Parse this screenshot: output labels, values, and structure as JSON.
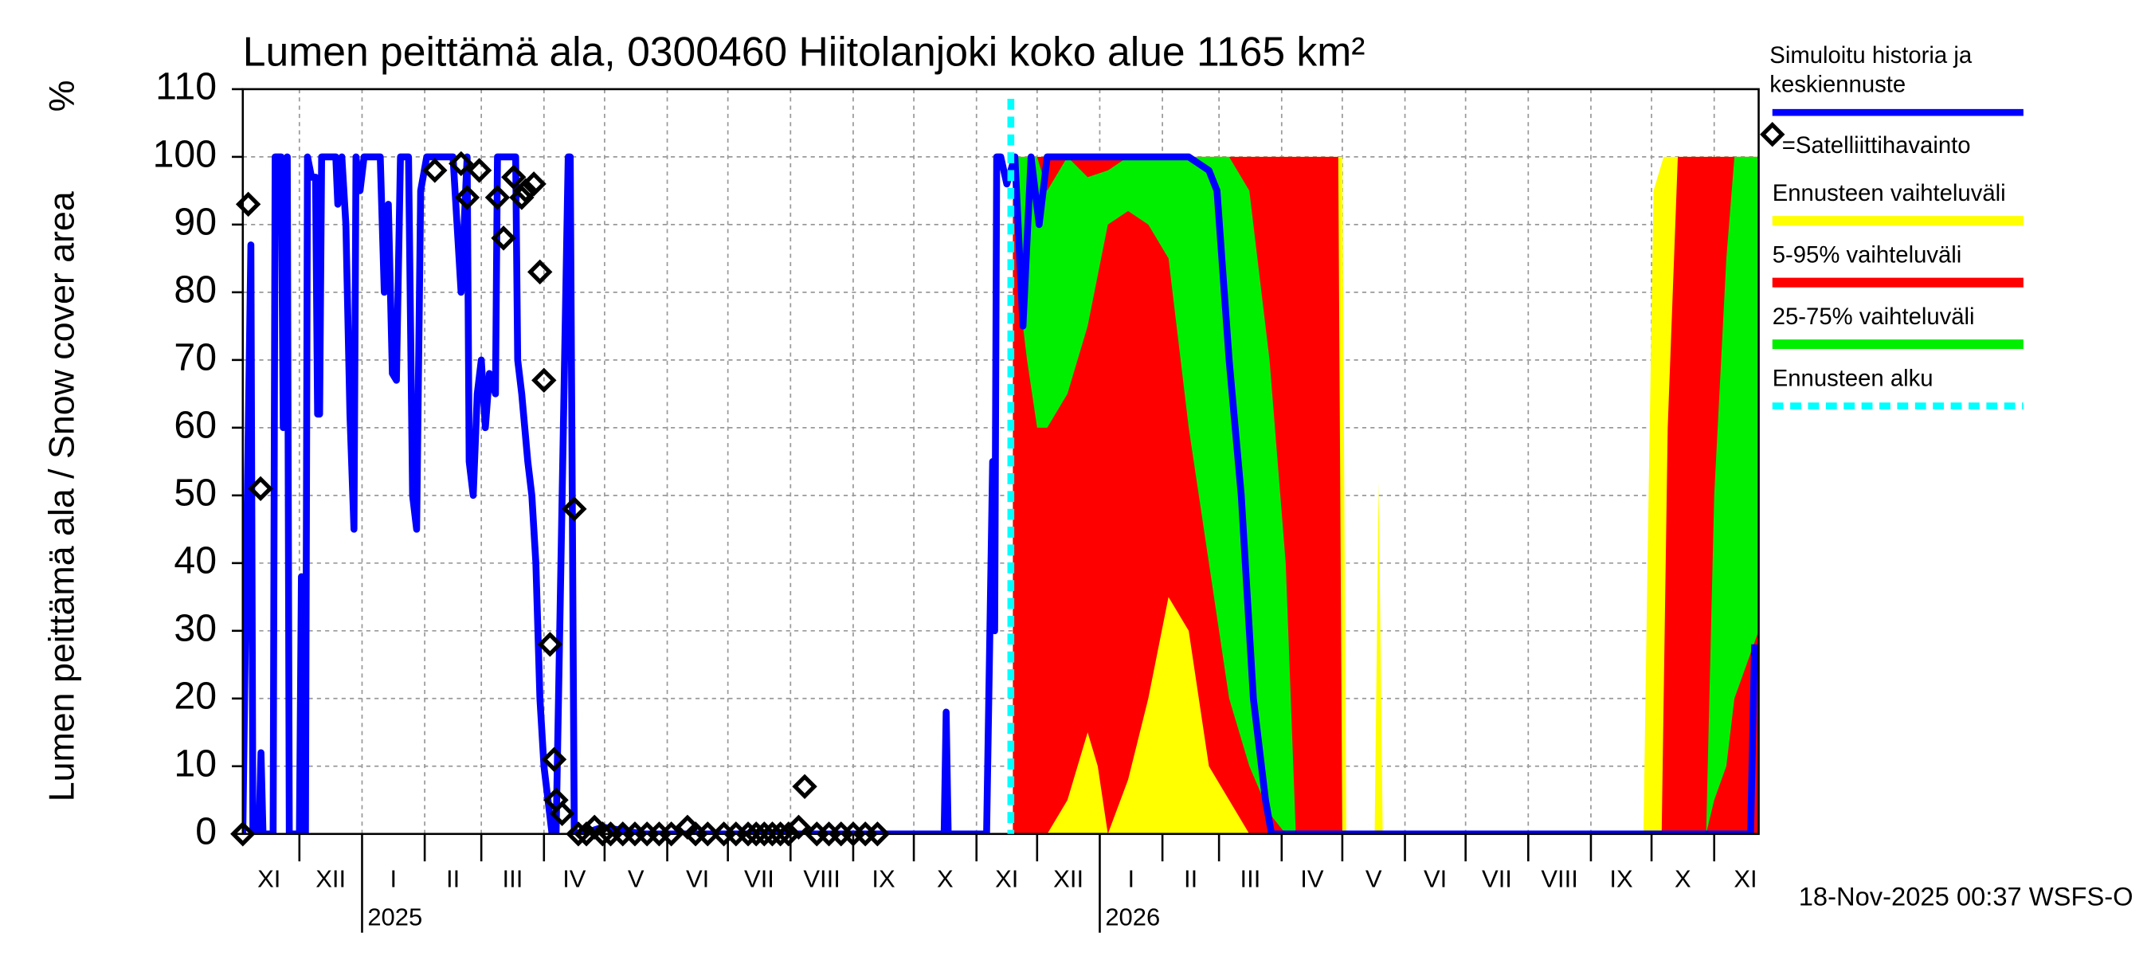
{
  "chart_data": {
    "type": "line",
    "title": "Lumen peittämä ala, 0300460 Hiitolanjoki koko alue 1165 km²",
    "y_label": "Lumen peittämä ala / Snow cover area",
    "y_unit": "%",
    "footer": "18-Nov-2025 00:37 WSFS-O",
    "xlim": [
      2,
      752
    ],
    "xticks": [
      {
        "value": 0,
        "label": "XI"
      },
      {
        "value": 30,
        "label": "XII"
      },
      {
        "value": 61,
        "label": "I"
      },
      {
        "value": 92,
        "label": "II"
      },
      {
        "value": 120,
        "label": "III"
      },
      {
        "value": 151,
        "label": "IV"
      },
      {
        "value": 181,
        "label": "V"
      },
      {
        "value": 212,
        "label": "VI"
      },
      {
        "value": 242,
        "label": "VII"
      },
      {
        "value": 273,
        "label": "VIII"
      },
      {
        "value": 304,
        "label": "IX"
      },
      {
        "value": 334,
        "label": "X"
      },
      {
        "value": 365,
        "label": "XI"
      },
      {
        "value": 395,
        "label": "XII"
      },
      {
        "value": 426,
        "label": "I"
      },
      {
        "value": 457,
        "label": "II"
      },
      {
        "value": 485,
        "label": "III"
      },
      {
        "value": 516,
        "label": "IV"
      },
      {
        "value": 546,
        "label": "V"
      },
      {
        "value": 577,
        "label": "VI"
      },
      {
        "value": 607,
        "label": "VII"
      },
      {
        "value": 638,
        "label": "VIII"
      },
      {
        "value": 669,
        "label": "IX"
      },
      {
        "value": 699,
        "label": "X"
      },
      {
        "value": 730,
        "label": "XI"
      }
    ],
    "year_labels": [
      {
        "value": 61,
        "label": "2025"
      },
      {
        "value": 426,
        "label": "2026"
      }
    ],
    "ylim": [
      0,
      110
    ],
    "yticks": [
      0,
      10,
      20,
      30,
      40,
      50,
      60,
      70,
      80,
      90,
      100,
      110
    ],
    "grid": true,
    "bands": [
      {
        "name": "Ennusteen vaihteluväli",
        "color": "#ffff00",
        "x": [
          383,
          546,
          548,
          562,
          564,
          566,
          695,
          697,
          700,
          705,
          752
        ],
        "high": [
          100,
          100,
          0,
          0,
          52,
          0,
          0,
          40,
          95,
          100,
          100
        ],
        "low": [
          0,
          0,
          0,
          0,
          0,
          0,
          0,
          0,
          0,
          0,
          0
        ]
      },
      {
        "name": "5-95% vaihteluväli",
        "color": "#ff0000",
        "x": [
          383,
          400,
          410,
          420,
          425,
          430,
          440,
          450,
          460,
          470,
          480,
          490,
          500,
          544,
          546,
          704,
          707,
          712,
          752
        ],
        "high": [
          100,
          100,
          100,
          100,
          100,
          100,
          100,
          100,
          100,
          100,
          100,
          100,
          100,
          100,
          0,
          0,
          60,
          100,
          100
        ],
        "low": [
          0,
          0,
          5,
          15,
          10,
          0,
          8,
          20,
          35,
          30,
          10,
          5,
          0,
          0,
          0,
          0,
          0,
          0,
          0
        ]
      },
      {
        "name": "25-75% vaihteluväli",
        "color": "#00ee00",
        "x": [
          383,
          386,
          390,
          395,
          400,
          410,
          420,
          430,
          440,
          450,
          460,
          470,
          480,
          490,
          500,
          510,
          518,
          523,
          726,
          730,
          736,
          740,
          752
        ],
        "high": [
          100,
          100,
          100,
          100,
          95,
          100,
          97,
          98,
          100,
          100,
          100,
          100,
          100,
          100,
          95,
          70,
          40,
          0,
          0,
          50,
          85,
          100,
          100
        ],
        "low": [
          100,
          80,
          70,
          60,
          60,
          65,
          75,
          90,
          92,
          90,
          85,
          60,
          40,
          20,
          10,
          3,
          0,
          0,
          0,
          5,
          10,
          20,
          30
        ]
      }
    ],
    "series": [
      {
        "name": "Simuloitu historia ja keskiennuste",
        "color": "#0000ff",
        "x": [
          2,
          4,
          6,
          7,
          10,
          11,
          12,
          17,
          18,
          21,
          22,
          24,
          25,
          30,
          31,
          33,
          34,
          36,
          38,
          39,
          40,
          41,
          48,
          49,
          51,
          53,
          55,
          57,
          58,
          60,
          62,
          70,
          72,
          74,
          76,
          78,
          80,
          84,
          86,
          88,
          90,
          93,
          106,
          110,
          113,
          114,
          116,
          118,
          120,
          122,
          124,
          127,
          128,
          137,
          138,
          140,
          143,
          145,
          147,
          149,
          151,
          153,
          155,
          157,
          163,
          164,
          166,
          170,
          180,
          200,
          300,
          349,
          350,
          351,
          370,
          373,
          374,
          375,
          377,
          380,
          384,
          388,
          392,
          396,
          400,
          450,
          470,
          480,
          484,
          490,
          496,
          502,
          508,
          511,
          700,
          748,
          750
        ],
        "values": [
          0,
          45,
          87,
          0,
          0,
          12,
          0,
          0,
          100,
          100,
          60,
          100,
          0,
          0,
          38,
          0,
          100,
          97,
          97,
          62,
          62,
          100,
          100,
          93,
          100,
          90,
          62,
          45,
          100,
          95,
          100,
          100,
          80,
          93,
          68,
          67,
          100,
          100,
          50,
          45,
          95,
          100,
          100,
          80,
          100,
          55,
          50,
          65,
          70,
          60,
          68,
          65,
          100,
          100,
          70,
          65,
          55,
          50,
          40,
          20,
          10,
          5,
          0,
          0,
          100,
          100,
          0,
          0,
          1,
          0,
          0,
          0,
          18,
          0,
          0,
          55,
          30,
          100,
          100,
          96,
          100,
          75,
          100,
          90,
          100,
          100,
          100,
          98,
          95,
          70,
          50,
          20,
          5,
          0,
          0,
          0,
          28
        ]
      }
    ],
    "observations": {
      "name": "=Satelliittihavainto",
      "color": "#000000",
      "x": [
        2,
        4.7,
        10.8,
        97,
        110,
        113,
        119,
        128,
        131,
        136,
        140,
        142,
        146,
        149,
        151,
        154,
        156,
        157,
        160,
        166,
        168,
        172,
        176,
        180,
        184,
        190,
        196,
        202,
        208,
        214,
        222,
        226,
        232,
        240,
        246,
        252,
        256,
        260,
        264,
        268,
        272,
        277,
        280,
        286,
        292,
        298,
        304,
        310,
        316
      ],
      "values": [
        0,
        93,
        51,
        98,
        99,
        94,
        98,
        94,
        88,
        97,
        94,
        95,
        96,
        83,
        67,
        28,
        11,
        5,
        3,
        48,
        0,
        0,
        1,
        0,
        0,
        0,
        0,
        0,
        0,
        0,
        1,
        0,
        0,
        0,
        0,
        0,
        0,
        0,
        0,
        0,
        0,
        1,
        7,
        0,
        0,
        0,
        0,
        0,
        0
      ]
    },
    "forecast_start": {
      "name": "Ennusteen alku",
      "color": "#00ffff",
      "x": 382
    }
  }
}
